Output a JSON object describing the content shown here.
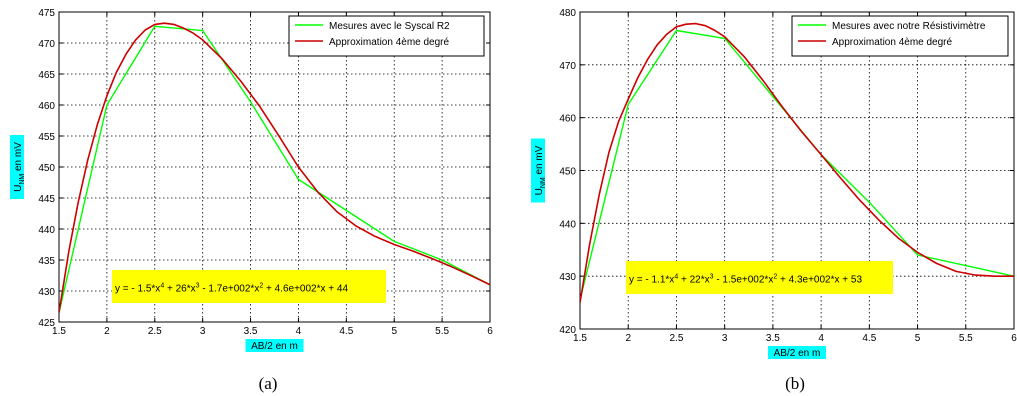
{
  "chart_data": [
    {
      "type": "line",
      "caption": "(a)",
      "xlabel": "AB/2 en m",
      "ylabel": {
        "main": "U",
        "sub": "NM",
        "rest": " en mV"
      },
      "xlim": [
        1.5,
        6
      ],
      "ylim": [
        425,
        475
      ],
      "xticks": [
        1.5,
        2,
        2.5,
        3,
        3.5,
        4,
        4.5,
        5,
        5.5,
        6
      ],
      "xtick_labels": [
        "1.5",
        "2",
        "2.5",
        "3",
        "3.5",
        "4",
        "4.5",
        "5",
        "5.5",
        "6"
      ],
      "yticks": [
        425,
        430,
        435,
        440,
        445,
        450,
        455,
        460,
        465,
        470,
        475
      ],
      "ytick_labels": [
        "425",
        "430",
        "435",
        "440",
        "445",
        "450",
        "455",
        "460",
        "465",
        "470",
        "475"
      ],
      "grid": true,
      "legend_position": "top-right",
      "highlight_color": "#00ffff",
      "series": [
        {
          "name": "Mesures avec le Syscal R2",
          "color": "#00ff00",
          "x": [
            1.5,
            2,
            2.5,
            3,
            3.5,
            4,
            4.5,
            5,
            5.5,
            6
          ],
          "y": [
            426.5,
            460,
            472.7,
            472,
            460.5,
            448,
            443,
            438,
            435,
            431
          ]
        },
        {
          "name": "Approximation 4ème degré",
          "color": "#cc0000",
          "fit": {
            "a4": -1.5,
            "a3": 26,
            "a2": -170,
            "a1": 460,
            "a0": 44
          },
          "anchors": {
            "x": [
              1.5,
              2,
              2.5,
              2.6,
              3,
              4,
              5,
              5.5,
              6
            ],
            "y": [
              426.5,
              462,
              472.8,
              473.2,
              470.5,
              450,
              437.5,
              434.5,
              431
            ]
          },
          "x": [
            1.5,
            1.6,
            1.7,
            1.8,
            1.9,
            2,
            2.1,
            2.2,
            2.3,
            2.4,
            2.5,
            2.6,
            2.7,
            2.8,
            2.9,
            3,
            3.2,
            3.4,
            3.6,
            3.8,
            4,
            4.2,
            4.4,
            4.6,
            4.8,
            5,
            5.2,
            5.4,
            5.6,
            5.8,
            6
          ],
          "y": [
            426.5,
            436.2,
            444.3,
            451.1,
            456.8,
            461.5,
            465.3,
            468.2,
            470.5,
            472.1,
            473.0,
            473.2,
            473.0,
            472.4,
            471.6,
            470.5,
            467.5,
            463.8,
            459.7,
            454.9,
            450.0,
            446.0,
            442.8,
            440.5,
            438.8,
            437.5,
            436.4,
            435.2,
            433.9,
            432.5,
            431.0
          ]
        }
      ],
      "annotation": {
        "text": "y = - 1.5*x4 + 26*x3 - 1.7e+002*x2 + 4.6e+002*x + 44",
        "parts": [
          "y = - 1.5*x",
          "4",
          " + 26*x",
          "3",
          " - 1.7e+002*x",
          "2",
          " + 4.6e+002*x + 44"
        ],
        "background": "#ffff00"
      }
    },
    {
      "type": "line",
      "caption": "(b)",
      "xlabel": "AB/2 en m",
      "ylabel": {
        "main": "U",
        "sub": "NM",
        "rest": " en mV"
      },
      "xlim": [
        1.5,
        6
      ],
      "ylim": [
        420,
        480
      ],
      "xticks": [
        1.5,
        2,
        2.5,
        3,
        3.5,
        4,
        4.5,
        5,
        5.5,
        6
      ],
      "xtick_labels": [
        "1.5",
        "2",
        "2.5",
        "3",
        "3.5",
        "4",
        "4.5",
        "5",
        "5.5",
        "6"
      ],
      "yticks": [
        420,
        430,
        440,
        450,
        460,
        470,
        480
      ],
      "ytick_labels": [
        "420",
        "430",
        "440",
        "450",
        "460",
        "470",
        "480"
      ],
      "grid": true,
      "legend_position": "top-right",
      "highlight_color": "#00ffff",
      "series": [
        {
          "name": "Mesures avec notre Résistivimètre",
          "color": "#00ff00",
          "x": [
            1.5,
            2,
            2.5,
            3,
            3.5,
            4,
            4.5,
            5,
            5.5,
            6
          ],
          "y": [
            425.5,
            462.5,
            476.5,
            475,
            464,
            453,
            444,
            434,
            432,
            430
          ]
        },
        {
          "name": "Approximation 4ème  degré",
          "color": "#cc0000",
          "fit": {
            "a4": -1.1,
            "a3": 22,
            "a2": -150,
            "a1": 430,
            "a0": 53
          },
          "anchors": {
            "x": [
              1.5,
              2,
              2.5,
              2.7,
              3,
              4,
              5,
              5.5,
              6
            ],
            "y": [
              425,
              463.5,
              477.2,
              477.8,
              475.3,
              453,
              434.5,
              430.5,
              430
            ]
          },
          "x": [
            1.5,
            1.6,
            1.7,
            1.8,
            1.9,
            2,
            2.1,
            2.2,
            2.3,
            2.4,
            2.5,
            2.6,
            2.7,
            2.8,
            2.9,
            3,
            3.2,
            3.4,
            3.6,
            3.8,
            4,
            4.2,
            4.4,
            4.6,
            4.8,
            5,
            5.2,
            5.4,
            5.6,
            5.8,
            6
          ],
          "y": [
            425.0,
            436.0,
            445.5,
            453.4,
            459.3,
            463.5,
            467.6,
            471.0,
            473.8,
            475.8,
            477.2,
            477.7,
            477.8,
            477.4,
            476.5,
            475.3,
            471.6,
            467.0,
            462.0,
            457.3,
            453.0,
            448.6,
            444.4,
            440.6,
            437.2,
            434.5,
            432.4,
            430.9,
            430.2,
            430.0,
            430.0
          ]
        }
      ],
      "annotation": {
        "text": "y = - 1.1*x4 + 22*x3 - 1.5e+002*x2 + 4.3e+002*x + 53",
        "parts": [
          "y = - 1.1*x",
          "4",
          " + 22*x",
          "3",
          " - 1.5e+002*x",
          "2",
          " + 4.3e+002*x + 53"
        ],
        "background": "#ffff00"
      }
    }
  ]
}
